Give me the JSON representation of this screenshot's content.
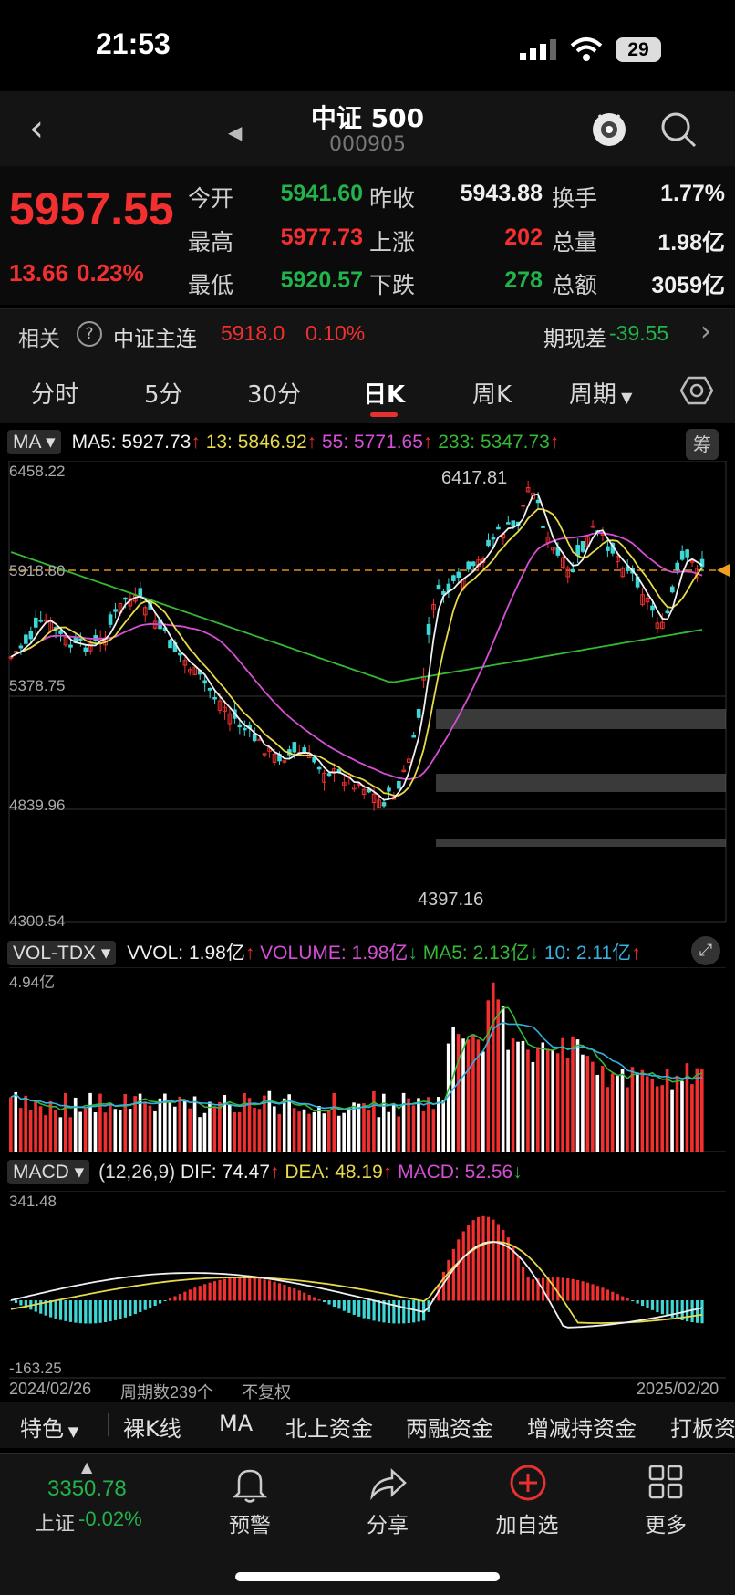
{
  "status": {
    "time": "21:53",
    "battery": "29"
  },
  "header": {
    "title": "中证 500",
    "code": "000905"
  },
  "quote": {
    "price": "5957.55",
    "change": "13.66",
    "change_pct": "0.23%",
    "rows": [
      [
        {
          "label": "今开",
          "value": "5941.60"
        },
        {
          "label": "昨收",
          "value": "5943.88"
        },
        {
          "label": "换手",
          "value": "1.77%"
        }
      ],
      [
        {
          "label": "最高",
          "value": "5977.73"
        },
        {
          "label": "上涨",
          "value": "202"
        },
        {
          "label": "总量",
          "value": "1.98亿"
        }
      ],
      [
        {
          "label": "最低",
          "value": "5920.57"
        },
        {
          "label": "下跌",
          "value": "278"
        },
        {
          "label": "总额",
          "value": "3059亿"
        }
      ]
    ]
  },
  "related": {
    "label": "相关",
    "help": "?",
    "name": "中证主连",
    "price": "5918.0",
    "pct": "0.10%",
    "basis_label": "期现差",
    "basis_value": "-39.55"
  },
  "tabs": [
    "分时",
    "5分",
    "30分",
    "日K",
    "周K",
    "周期"
  ],
  "ma": {
    "selector": "MA",
    "ma5": "MA5: 5927.73",
    "ma13": "13: 5846.92",
    "ma55": "55: 5771.65",
    "ma233": "233: 5347.73",
    "chip": "筹",
    "y_labels": [
      "6458.22",
      "5918.80",
      "5378.75",
      "4839.96",
      "4300.54"
    ],
    "high_mark": "6417.81",
    "low_mark": "4397.16"
  },
  "vol": {
    "selector": "VOL-TDX",
    "vvol": "VVOL: 1.98亿",
    "volume": "VOLUME: 1.98亿",
    "ma5": "MA5: 2.13亿",
    "ma10": "10: 2.11亿",
    "y_max": "4.94亿"
  },
  "macd": {
    "selector": "MACD",
    "params": "(12,26,9)",
    "dif": "DIF: 74.47",
    "dea": "DEA: 48.19",
    "macd": "MACD: 52.56",
    "y_max": "341.48",
    "y_min": "-163.25"
  },
  "footer": {
    "start_date": "2024/02/26",
    "periods": "周期数239个",
    "adjust": "不复权",
    "end_date": "2025/02/20"
  },
  "tools": [
    "特色",
    "裸K线",
    "MA",
    "北上资金",
    "两融资金",
    "增减持资金",
    "打板资"
  ],
  "bottom": {
    "index_price": "3350.78",
    "index_name": "上证",
    "index_pct": "-0.02%",
    "items": [
      "预警",
      "分享",
      "加自选",
      "更多"
    ]
  }
}
